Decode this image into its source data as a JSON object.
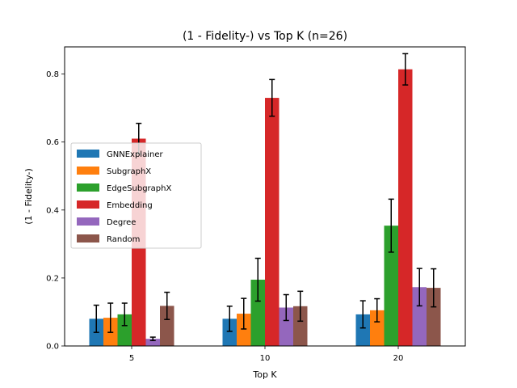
{
  "chart_data": {
    "type": "bar",
    "title": "(1 - Fidelity-) vs Top K (n=26)",
    "xlabel": "Top K",
    "ylabel": "(1 - Fidelity-)",
    "categories": [
      "5",
      "10",
      "20"
    ],
    "ylim": [
      0,
      0.88
    ],
    "yticks": [
      "0.0",
      "0.2",
      "0.4",
      "0.6",
      "0.8"
    ],
    "grid": false,
    "legend_position": "center-left",
    "series": [
      {
        "name": "GNNExplainer",
        "color": "#1f77b4",
        "values": [
          0.08,
          0.08,
          0.093
        ],
        "errors": [
          0.04,
          0.037,
          0.04
        ]
      },
      {
        "name": "SubgraphX",
        "color": "#ff7f0e",
        "values": [
          0.083,
          0.095,
          0.105
        ],
        "errors": [
          0.043,
          0.045,
          0.034
        ]
      },
      {
        "name": "EdgeSubgraphX",
        "color": "#2ca02c",
        "values": [
          0.093,
          0.195,
          0.354
        ],
        "errors": [
          0.033,
          0.063,
          0.078
        ]
      },
      {
        "name": "Embedding",
        "color": "#d62728",
        "values": [
          0.61,
          0.73,
          0.814
        ],
        "errors": [
          0.045,
          0.054,
          0.046
        ]
      },
      {
        "name": "Degree",
        "color": "#9467bd",
        "values": [
          0.021,
          0.113,
          0.173
        ],
        "errors": [
          0.005,
          0.038,
          0.055
        ]
      },
      {
        "name": "Random",
        "color": "#8c564b",
        "values": [
          0.118,
          0.117,
          0.171
        ],
        "errors": [
          0.04,
          0.044,
          0.056
        ]
      }
    ]
  }
}
